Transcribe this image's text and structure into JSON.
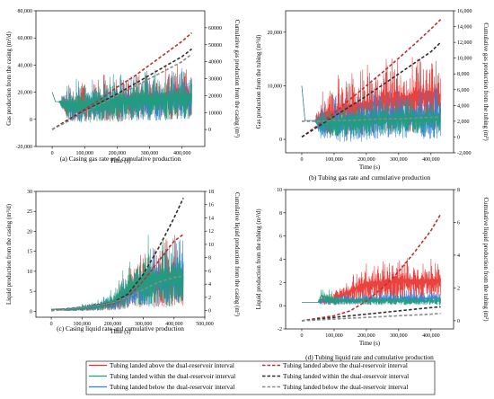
{
  "colors": {
    "above_rate": "#e8322f",
    "within_rate": "#1f9e7a",
    "below_rate": "#2f7fe0",
    "above_cum": "#b8312f",
    "within_cum": "#2e2e2e",
    "below_cum": "#8a8a8a"
  },
  "legend": {
    "items": [
      "Tubing landed above the dual-reservoir interval",
      "Tubing landed within the dual-reservoir interval",
      "Tubing landed below the dual-reservoir interval",
      "Tubing landed above the dual-reservoir interval",
      "Tubing landed within the dual-reservoir interval",
      "Tubing landed below the dual-reservoir interval"
    ]
  },
  "chart_data": [
    {
      "id": "a",
      "type": "line",
      "caption": "(a) Casing gas rate and cumulative production",
      "xlabel": "Time (s)",
      "ylabel": "Gas production from the casing (m³/d)",
      "y2label": "Cumulative gas production from the casing (m³)",
      "xlim": [
        -50000,
        470000
      ],
      "ylim": [
        -20000,
        80000
      ],
      "y2lim": [
        -10000,
        70000
      ],
      "xticks": [
        "0",
        "100,000",
        "200,000",
        "300,000",
        "400,000"
      ],
      "yticks": [
        "-20,000",
        "0",
        "20,000",
        "40,000",
        "60,000",
        "80,000"
      ],
      "y2ticks": [
        "0",
        "10000",
        "20000",
        "30000",
        "40000",
        "50000",
        "60000"
      ],
      "rate_series": [
        {
          "name": "Tubing landed above the dual-reservoir interval",
          "x": [
            0,
            10000,
            20000,
            50000,
            100000,
            150000,
            200000,
            250000,
            300000,
            350000,
            400000,
            430000
          ],
          "low": [
            20000,
            13000,
            13000,
            -2000,
            -4000,
            -3000,
            -4000,
            -3000,
            -3000,
            -3000,
            -2000,
            -2000
          ],
          "high": [
            20000,
            13000,
            13000,
            28000,
            33000,
            36000,
            38000,
            40000,
            42000,
            43000,
            44000,
            44000
          ]
        },
        {
          "name": "Tubing landed below the dual-reservoir interval",
          "x": [
            0,
            10000,
            20000,
            50000,
            100000,
            150000,
            200000,
            250000,
            300000,
            350000,
            400000,
            430000
          ],
          "low": [
            20000,
            13000,
            13000,
            -3000,
            -4000,
            -3000,
            -4000,
            -3000,
            -3000,
            -3000,
            -2000,
            -2000
          ],
          "high": [
            20000,
            13000,
            13000,
            27000,
            32000,
            34000,
            36000,
            37000,
            38000,
            39000,
            40000,
            40000
          ]
        },
        {
          "name": "Tubing landed within the dual-reservoir interval",
          "x": [
            0,
            10000,
            20000,
            50000,
            100000,
            150000,
            200000,
            250000,
            300000,
            350000,
            400000,
            430000
          ],
          "low": [
            20000,
            13000,
            13000,
            -3000,
            -5000,
            -4000,
            -4000,
            -3000,
            -3000,
            -3000,
            -2000,
            -2000
          ],
          "high": [
            20000,
            13000,
            13000,
            30000,
            33000,
            35000,
            37000,
            38000,
            39000,
            40000,
            41000,
            41000
          ]
        }
      ],
      "cum_series": [
        {
          "name": "Tubing landed above the dual-reservoir interval",
          "x": [
            0,
            50000,
            100000,
            150000,
            200000,
            250000,
            300000,
            350000,
            400000,
            430000
          ],
          "y": [
            0,
            6000,
            12000,
            18000,
            25000,
            31000,
            38000,
            45000,
            52000,
            57000
          ]
        },
        {
          "name": "Tubing landed within the dual-reservoir interval",
          "x": [
            0,
            50000,
            100000,
            150000,
            200000,
            250000,
            300000,
            350000,
            400000,
            430000
          ],
          "y": [
            0,
            5500,
            11000,
            16000,
            21000,
            26500,
            32000,
            37500,
            43000,
            47500
          ]
        },
        {
          "name": "Tubing landed below the dual-reservoir interval",
          "x": [
            0,
            50000,
            100000,
            150000,
            200000,
            250000,
            300000,
            350000,
            400000,
            430000
          ],
          "y": [
            0,
            5000,
            10500,
            15000,
            20000,
            25000,
            30000,
            35000,
            40000,
            44500
          ]
        }
      ]
    },
    {
      "id": "b",
      "type": "line",
      "caption": "(b) Tubing gas rate and cumulative production",
      "xlabel": "Time (s)",
      "ylabel": "Gas production from the tubing (m³/d)",
      "y2label": "Cumulative gas production from the tubing (m³)",
      "xlim": [
        -50000,
        470000
      ],
      "ylim": [
        -2500,
        24000
      ],
      "y2lim": [
        -2000,
        16000
      ],
      "xticks": [
        "0",
        "100,000",
        "200,000",
        "300,000",
        "400,000"
      ],
      "yticks": [
        "0",
        "10,000",
        "20,000"
      ],
      "y2ticks": [
        "-2,000",
        "0",
        "2,000",
        "4,000",
        "6,000",
        "8,000",
        "10,000",
        "12,000",
        "14,000",
        "16,000"
      ],
      "rate_series": [
        {
          "name": "Tubing landed above the dual-reservoir interval",
          "x": [
            0,
            10000,
            40000,
            60000,
            100000,
            150000,
            200000,
            250000,
            300000,
            350000,
            400000,
            430000
          ],
          "low": [
            10000,
            3500,
            3500,
            1000,
            0,
            0,
            0,
            500,
            500,
            500,
            500,
            500
          ],
          "high": [
            10000,
            3500,
            3500,
            9000,
            12000,
            14000,
            15000,
            16000,
            17000,
            18000,
            19000,
            18000
          ]
        },
        {
          "name": "Tubing landed within the dual-reservoir interval",
          "x": [
            0,
            10000,
            40000,
            60000,
            100000,
            150000,
            200000,
            250000,
            300000,
            350000,
            400000,
            430000
          ],
          "low": [
            10000,
            3500,
            3500,
            -500,
            -1000,
            -1000,
            -1000,
            -500,
            -500,
            -500,
            -500,
            -500
          ],
          "high": [
            10000,
            3500,
            3500,
            7000,
            9000,
            10000,
            10000,
            10500,
            10500,
            11000,
            11000,
            11000
          ]
        },
        {
          "name": "Tubing landed below the dual-reservoir interval",
          "x": [
            0,
            10000,
            40000,
            60000,
            100000,
            150000,
            200000,
            250000,
            300000,
            350000,
            400000,
            430000
          ],
          "low": [
            10000,
            3500,
            3500,
            500,
            0,
            0,
            0,
            500,
            500,
            500,
            500,
            500
          ],
          "high": [
            10000,
            3500,
            3500,
            6500,
            7500,
            8000,
            8000,
            8500,
            8500,
            8500,
            8500,
            8500
          ]
        }
      ],
      "cum_series": [
        {
          "name": "Tubing landed above the dual-reservoir interval",
          "x": [
            0,
            50000,
            100000,
            150000,
            200000,
            250000,
            300000,
            350000,
            400000,
            430000
          ],
          "y": [
            0,
            1500,
            3000,
            4800,
            6500,
            8200,
            10000,
            11800,
            13700,
            14900
          ]
        },
        {
          "name": "Tubing landed within the dual-reservoir interval",
          "x": [
            0,
            50000,
            100000,
            150000,
            200000,
            250000,
            300000,
            350000,
            400000,
            430000
          ],
          "y": [
            0,
            1300,
            2600,
            3900,
            5200,
            6600,
            8000,
            9400,
            10800,
            12000
          ]
        },
        {
          "name": "Tubing landed below the dual-reservoir interval",
          "x": [
            0,
            50000,
            100000,
            150000,
            200000,
            250000,
            300000,
            350000,
            400000,
            430000
          ],
          "y": [
            2000,
            2000,
            2100,
            2100,
            2200,
            2300,
            2300,
            2400,
            2500,
            2500
          ]
        }
      ]
    },
    {
      "id": "c",
      "type": "line",
      "caption": "(c) Casing liquid rate and cumulative production",
      "xlabel": "Time (s)",
      "ylabel": "Liquid production from the casing (m³/d)",
      "y2label": "Cumulative liquid production from the casing (m³)",
      "xlim": [
        -50000,
        500000
      ],
      "ylim": [
        -1.5,
        30
      ],
      "y2lim": [
        -1,
        18
      ],
      "xticks": [
        "0",
        "100,000",
        "200,000",
        "300,000",
        "400,000",
        "500,000"
      ],
      "yticks": [
        "0",
        "5",
        "10",
        "15",
        "20",
        "25",
        "30"
      ],
      "y2ticks": [
        "0",
        "2",
        "4",
        "6",
        "8",
        "10",
        "12",
        "14",
        "16",
        "18"
      ],
      "rate_series": [
        {
          "name": "Tubing landed above the dual-reservoir interval",
          "x": [
            0,
            50000,
            100000,
            150000,
            200000,
            250000,
            300000,
            350000,
            400000,
            430000
          ],
          "low": [
            0.5,
            0,
            0,
            0,
            0,
            0,
            0,
            0,
            0,
            0
          ],
          "high": [
            0.5,
            1.0,
            1.5,
            2.5,
            4,
            12,
            18,
            19,
            20,
            20
          ]
        },
        {
          "name": "Tubing landed below the dual-reservoir interval",
          "x": [
            0,
            50000,
            100000,
            150000,
            200000,
            250000,
            300000,
            350000,
            400000,
            430000
          ],
          "low": [
            0.5,
            0,
            0,
            0,
            0,
            0,
            0,
            0,
            0,
            0
          ],
          "high": [
            0.5,
            1.0,
            1.5,
            3,
            5,
            10,
            15,
            18,
            19,
            19
          ]
        },
        {
          "name": "Tubing landed within the dual-reservoir interval",
          "x": [
            0,
            50000,
            100000,
            150000,
            200000,
            250000,
            300000,
            350000,
            400000,
            430000
          ],
          "low": [
            0.5,
            0,
            0,
            0,
            0,
            0,
            0,
            0,
            0,
            0
          ],
          "high": [
            0.5,
            1.0,
            2.0,
            3,
            6,
            14,
            20,
            20,
            20,
            20
          ]
        }
      ],
      "cum_series": [
        {
          "name": "Tubing landed above the dual-reservoir interval",
          "x": [
            0,
            50000,
            100000,
            150000,
            200000,
            250000,
            300000,
            350000,
            400000,
            430000
          ],
          "y": [
            0,
            0.2,
            0.5,
            0.8,
            1.0,
            2.0,
            4.5,
            7.5,
            10.5,
            11.5
          ]
        },
        {
          "name": "Tubing landed within the dual-reservoir interval",
          "x": [
            0,
            50000,
            100000,
            150000,
            200000,
            250000,
            300000,
            350000,
            400000,
            430000
          ],
          "y": [
            0,
            0.25,
            0.55,
            0.9,
            1.2,
            2.5,
            5.5,
            9.5,
            14.0,
            17.0
          ]
        },
        {
          "name": "Tubing landed below the dual-reservoir interval",
          "x": [
            0,
            50000,
            100000,
            150000,
            200000,
            250000,
            300000,
            350000,
            400000,
            430000
          ],
          "y": [
            0,
            0.2,
            0.5,
            0.8,
            1.2,
            2.0,
            3.2,
            4.3,
            5.0,
            5.2
          ]
        }
      ]
    },
    {
      "id": "d",
      "type": "line",
      "caption": "(d) Tubing liquid rate and cumulative production",
      "xlabel": "Time (s)",
      "ylabel": "Liquid production from the tubing (m³/d)",
      "y2label": "Cumulative liquid production from the tubing (m³)",
      "xlim": [
        -50000,
        470000
      ],
      "ylim": [
        -2,
        10
      ],
      "y2lim": [
        -0.5,
        8
      ],
      "xticks": [
        "0",
        "100,000",
        "200,000",
        "300,000",
        "400,000"
      ],
      "yticks": [
        "-2",
        "0",
        "2",
        "4",
        "6",
        "8",
        "10"
      ],
      "y2ticks": [
        "0",
        "2",
        "4",
        "6",
        "8"
      ],
      "rate_series": [
        {
          "name": "Tubing landed above the dual-reservoir interval",
          "x": [
            0,
            10000,
            50000,
            60000,
            100000,
            150000,
            200000,
            250000,
            300000,
            350000,
            400000,
            430000
          ],
          "low": [
            0.3,
            0.3,
            0.3,
            0,
            0,
            0,
            0,
            0,
            0,
            0,
            0,
            0
          ],
          "high": [
            0.3,
            0.3,
            0.3,
            1.0,
            1.5,
            3.0,
            4.5,
            4.5,
            5.0,
            5.0,
            5.0,
            5.0
          ]
        },
        {
          "name": "Tubing landed within the dual-reservoir interval",
          "x": [
            0,
            10000,
            50000,
            60000,
            100000,
            150000,
            200000,
            250000,
            300000,
            350000,
            400000,
            430000
          ],
          "low": [
            0.3,
            0.3,
            0.3,
            0,
            0,
            0,
            0,
            0,
            0,
            0,
            0,
            0
          ],
          "high": [
            0.3,
            0.3,
            0.3,
            0.8,
            1.0,
            1.2,
            1.2,
            1.3,
            1.4,
            1.5,
            1.5,
            1.5
          ]
        },
        {
          "name": "Tubing landed below the dual-reservoir interval",
          "x": [
            0,
            10000,
            50000,
            60000,
            100000,
            150000,
            200000,
            250000,
            300000,
            350000,
            400000,
            430000
          ],
          "low": [
            0.3,
            0.3,
            0.3,
            0,
            0,
            0,
            0,
            0,
            0,
            0,
            0,
            0
          ],
          "high": [
            0.3,
            0.3,
            0.3,
            2.0,
            1.2,
            1.0,
            1.0,
            1.0,
            1.0,
            1.0,
            1.0,
            1.0
          ]
        }
      ],
      "cum_series": [
        {
          "name": "Tubing landed above the dual-reservoir interval",
          "x": [
            0,
            50000,
            100000,
            150000,
            200000,
            250000,
            300000,
            350000,
            400000,
            430000
          ],
          "y": [
            0,
            0.15,
            0.3,
            0.6,
            1.2,
            2.0,
            3.0,
            4.2,
            5.5,
            6.5
          ]
        },
        {
          "name": "Tubing landed within the dual-reservoir interval",
          "x": [
            0,
            50000,
            100000,
            150000,
            200000,
            250000,
            300000,
            350000,
            400000,
            430000
          ],
          "y": [
            0,
            0.1,
            0.2,
            0.3,
            0.4,
            0.5,
            0.6,
            0.7,
            0.8,
            0.85
          ]
        },
        {
          "name": "Tubing landed below the dual-reservoir interval",
          "x": [
            0,
            50000,
            100000,
            150000,
            200000,
            250000,
            300000,
            350000,
            400000,
            430000
          ],
          "y": [
            0,
            0.05,
            0.1,
            0.15,
            0.2,
            0.25,
            0.3,
            0.35,
            0.4,
            0.45
          ]
        }
      ]
    }
  ]
}
